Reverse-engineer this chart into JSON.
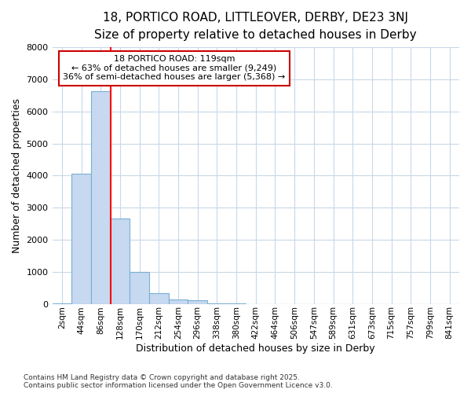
{
  "title_line1": "18, PORTICO ROAD, LITTLEOVER, DERBY, DE23 3NJ",
  "title_line2": "Size of property relative to detached houses in Derby",
  "xlabel": "Distribution of detached houses by size in Derby",
  "ylabel": "Number of detached properties",
  "bar_labels": [
    "2sqm",
    "44sqm",
    "86sqm",
    "128sqm",
    "170sqm",
    "212sqm",
    "254sqm",
    "296sqm",
    "338sqm",
    "380sqm",
    "422sqm",
    "464sqm",
    "506sqm",
    "547sqm",
    "589sqm",
    "631sqm",
    "673sqm",
    "715sqm",
    "757sqm",
    "799sqm",
    "841sqm"
  ],
  "bar_values": [
    5,
    4050,
    6630,
    2650,
    1000,
    340,
    130,
    100,
    5,
    2,
    1,
    0,
    0,
    0,
    0,
    0,
    0,
    0,
    0,
    0,
    0
  ],
  "bar_color": "#c6d9f0",
  "bar_edge_color": "#7bafd4",
  "bg_color": "#ffffff",
  "fig_bg_color": "#ffffff",
  "grid_color": "#c8d8e8",
  "red_line_x": 2.5,
  "annotation_text": "18 PORTICO ROAD: 119sqm\n← 63% of detached houses are smaller (9,249)\n36% of semi-detached houses are larger (5,368) →",
  "annotation_box_facecolor": "#ffffff",
  "annotation_box_edgecolor": "#cc0000",
  "ylim": [
    0,
    8000
  ],
  "yticks": [
    0,
    1000,
    2000,
    3000,
    4000,
    5000,
    6000,
    7000,
    8000
  ],
  "footer_line1": "Contains HM Land Registry data © Crown copyright and database right 2025.",
  "footer_line2": "Contains public sector information licensed under the Open Government Licence v3.0.",
  "title_fontsize": 11,
  "subtitle_fontsize": 9.5,
  "axis_label_fontsize": 9,
  "tick_fontsize": 7.5,
  "annotation_fontsize": 8,
  "footer_fontsize": 6.5
}
